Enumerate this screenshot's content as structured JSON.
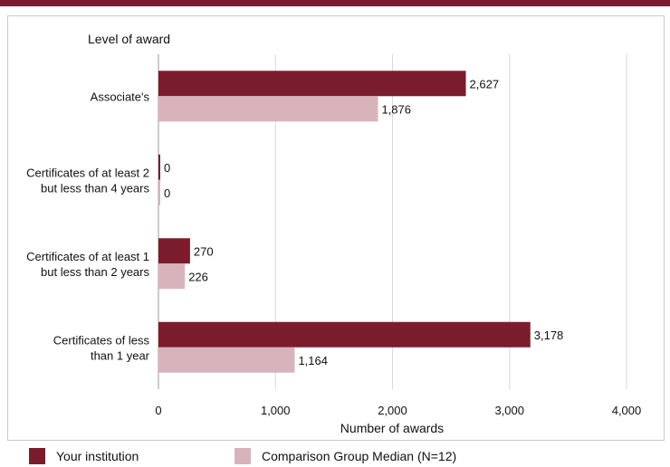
{
  "chart_data": {
    "type": "bar",
    "orientation": "horizontal",
    "yaxis_title": "Level of award",
    "xlabel": "Number of awards",
    "categories": [
      [
        "Associate's"
      ],
      [
        "Certificates of at least 2",
        "but less than 4 years"
      ],
      [
        "Certificates of at least 1",
        "but  less than 2 years"
      ],
      [
        "Certificates of less",
        "than 1 year"
      ]
    ],
    "series": [
      {
        "name": "Your institution",
        "color": "#7b1c2c",
        "values": [
          2627,
          0,
          270,
          3178
        ],
        "labels": [
          "2,627",
          "0",
          "270",
          "3,178"
        ]
      },
      {
        "name": "Comparison Group Median (N=12)",
        "color": "#d9b3bb",
        "values": [
          1876,
          0,
          226,
          1164
        ],
        "labels": [
          "1,876",
          "0",
          "226",
          "1,164"
        ]
      }
    ],
    "xlim": [
      0,
      4000
    ],
    "xticks": [
      0,
      1000,
      2000,
      3000,
      4000
    ],
    "xtick_labels": [
      "0",
      "1,000",
      "2,000",
      "3,000",
      "4,000"
    ],
    "grid": true,
    "legend_position": "bottom"
  }
}
